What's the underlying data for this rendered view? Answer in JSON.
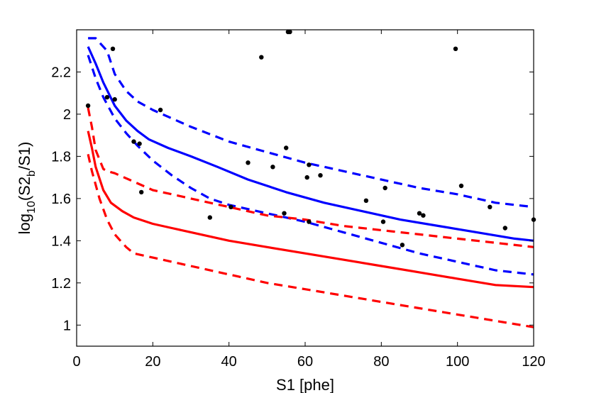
{
  "chart_data": {
    "type": "line",
    "xlabel": "S1 [phe]",
    "ylabel": {
      "prefix": "log",
      "sub1": "10",
      "middle": "(S2",
      "sub2": "b",
      "suffix": "/S1)"
    },
    "xlim": [
      0,
      120
    ],
    "ylim": [
      0.9,
      2.4
    ],
    "x_ticks": [
      0,
      20,
      40,
      60,
      80,
      100,
      120
    ],
    "y_ticks": [
      1,
      1.2,
      1.4,
      1.6,
      1.8,
      2,
      2.2
    ],
    "x_tick_labels": [
      "0",
      "20",
      "40",
      "60",
      "80",
      "100",
      "120"
    ],
    "y_tick_labels": [
      "1",
      "1.2",
      "1.4",
      "1.6",
      "1.8",
      "2",
      "2.2"
    ],
    "grid": false,
    "series": [
      {
        "style": "solid",
        "color": "#0000ff",
        "x": [
          3,
          5,
          7,
          10,
          13,
          16,
          19,
          24,
          30,
          37,
          45,
          55,
          65,
          75,
          85,
          95,
          105,
          115,
          120
        ],
        "y": [
          2.32,
          2.24,
          2.15,
          2.04,
          1.97,
          1.92,
          1.88,
          1.84,
          1.8,
          1.75,
          1.69,
          1.63,
          1.58,
          1.54,
          1.5,
          1.47,
          1.44,
          1.41,
          1.4
        ]
      },
      {
        "style": "dashed",
        "color": "#0000ff",
        "x": [
          3,
          5,
          8,
          10,
          13,
          16,
          20,
          25,
          30,
          40,
          50,
          60,
          70,
          80,
          90,
          100,
          110,
          120
        ],
        "y": [
          2.36,
          2.36,
          2.3,
          2.19,
          2.11,
          2.06,
          2.02,
          1.98,
          1.94,
          1.87,
          1.82,
          1.77,
          1.73,
          1.69,
          1.65,
          1.62,
          1.58,
          1.56
        ]
      },
      {
        "style": "dashed",
        "color": "#0000ff",
        "x": [
          3,
          5,
          7,
          10,
          13,
          16,
          20,
          25,
          30,
          35,
          40,
          50,
          60,
          70,
          80,
          90,
          100,
          110,
          120
        ],
        "y": [
          2.28,
          2.17,
          2.08,
          1.98,
          1.91,
          1.85,
          1.78,
          1.71,
          1.65,
          1.6,
          1.57,
          1.53,
          1.49,
          1.44,
          1.39,
          1.34,
          1.3,
          1.26,
          1.24
        ]
      },
      {
        "style": "solid",
        "color": "#ff0000",
        "x": [
          3,
          4,
          5,
          7,
          9,
          12,
          15,
          20,
          25,
          30,
          40,
          50,
          60,
          70,
          80,
          90,
          100,
          110,
          120
        ],
        "y": [
          1.92,
          1.84,
          1.75,
          1.64,
          1.58,
          1.54,
          1.51,
          1.48,
          1.46,
          1.44,
          1.4,
          1.37,
          1.34,
          1.31,
          1.28,
          1.25,
          1.22,
          1.19,
          1.18
        ]
      },
      {
        "style": "dashed",
        "color": "#ff0000",
        "x": [
          3,
          4,
          5,
          7,
          8,
          10,
          15,
          20,
          25,
          30,
          40,
          50,
          60,
          70,
          80,
          90,
          100,
          110,
          120
        ],
        "y": [
          2.03,
          1.94,
          1.83,
          1.74,
          1.73,
          1.72,
          1.68,
          1.64,
          1.62,
          1.6,
          1.56,
          1.52,
          1.5,
          1.47,
          1.45,
          1.43,
          1.41,
          1.39,
          1.37
        ]
      },
      {
        "style": "dashed",
        "color": "#ff0000",
        "x": [
          3,
          4,
          6,
          8,
          10,
          13,
          15,
          20,
          30,
          40,
          50,
          60,
          70,
          80,
          90,
          100,
          110,
          120
        ],
        "y": [
          1.81,
          1.73,
          1.6,
          1.5,
          1.43,
          1.37,
          1.34,
          1.32,
          1.28,
          1.24,
          1.2,
          1.17,
          1.14,
          1.11,
          1.08,
          1.05,
          1.02,
          0.99
        ]
      }
    ],
    "scatter": {
      "color": "#000000",
      "points": [
        [
          3,
          2.04
        ],
        [
          8,
          2.08
        ],
        [
          9.5,
          2.31
        ],
        [
          10,
          2.07
        ],
        [
          15,
          1.87
        ],
        [
          16.5,
          1.86
        ],
        [
          17,
          1.63
        ],
        [
          22,
          2.02
        ],
        [
          35,
          1.51
        ],
        [
          40.5,
          1.56
        ],
        [
          45,
          1.77
        ],
        [
          48.5,
          2.27
        ],
        [
          51.5,
          1.75
        ],
        [
          54.5,
          1.53
        ],
        [
          55,
          1.84
        ],
        [
          55.5,
          2.39
        ],
        [
          56,
          2.39
        ],
        [
          60.5,
          1.7
        ],
        [
          61,
          1.76
        ],
        [
          61,
          1.49
        ],
        [
          64,
          1.71
        ],
        [
          76,
          1.59
        ],
        [
          80.5,
          1.49
        ],
        [
          81,
          1.65
        ],
        [
          85.5,
          1.38
        ],
        [
          90,
          1.53
        ],
        [
          91,
          1.52
        ],
        [
          99.5,
          2.31
        ],
        [
          101,
          1.66
        ],
        [
          108.5,
          1.56
        ],
        [
          112.5,
          1.46
        ],
        [
          120,
          1.5
        ]
      ]
    }
  }
}
